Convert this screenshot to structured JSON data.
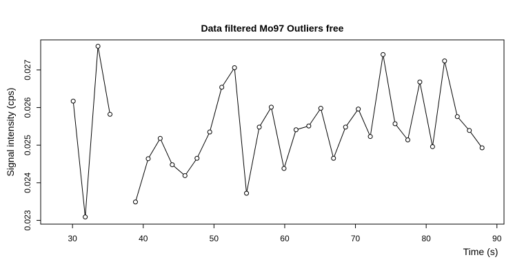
{
  "chart_data": {
    "type": "line",
    "title": "Data filtered Mo97 Outliers free",
    "xlabel": "Time (s)",
    "ylabel": "Signal intensity (cps)",
    "xlim": [
      25.5,
      91
    ],
    "ylim": [
      0.0229,
      0.0278
    ],
    "xticks": [
      30,
      40,
      50,
      60,
      70,
      80,
      90
    ],
    "xtick_labels": [
      "30",
      "40",
      "50",
      "60",
      "70",
      "80",
      "90"
    ],
    "yticks": [
      0.023,
      0.024,
      0.025,
      0.026,
      0.027
    ],
    "ytick_labels": [
      "0.023",
      "0.024",
      "0.025",
      "0.026",
      "0.027"
    ],
    "grid": false,
    "legend": "none",
    "series": [
      {
        "x": [
          30.1,
          31.8,
          33.6,
          35.3
        ],
        "y": [
          0.02617,
          0.02309,
          0.02763,
          0.02582
        ]
      },
      {
        "x": [
          38.9,
          40.7,
          42.4,
          44.1,
          45.9,
          47.6,
          49.4,
          51.1,
          52.9,
          54.6,
          56.4,
          58.1,
          59.9,
          61.6,
          63.4,
          65.1,
          66.9,
          68.6,
          70.4,
          72.1,
          73.9,
          75.6,
          77.4,
          79.1,
          80.9,
          82.6,
          84.4,
          86.1,
          87.9
        ],
        "y": [
          0.02349,
          0.02464,
          0.02518,
          0.02448,
          0.02419,
          0.02465,
          0.02535,
          0.02654,
          0.02706,
          0.02372,
          0.02548,
          0.02601,
          0.02438,
          0.02541,
          0.02551,
          0.02598,
          0.02465,
          0.02548,
          0.02596,
          0.02523,
          0.02741,
          0.02557,
          0.02514,
          0.02668,
          0.02496,
          0.02724,
          0.02576,
          0.02539,
          0.02493
        ]
      }
    ]
  }
}
